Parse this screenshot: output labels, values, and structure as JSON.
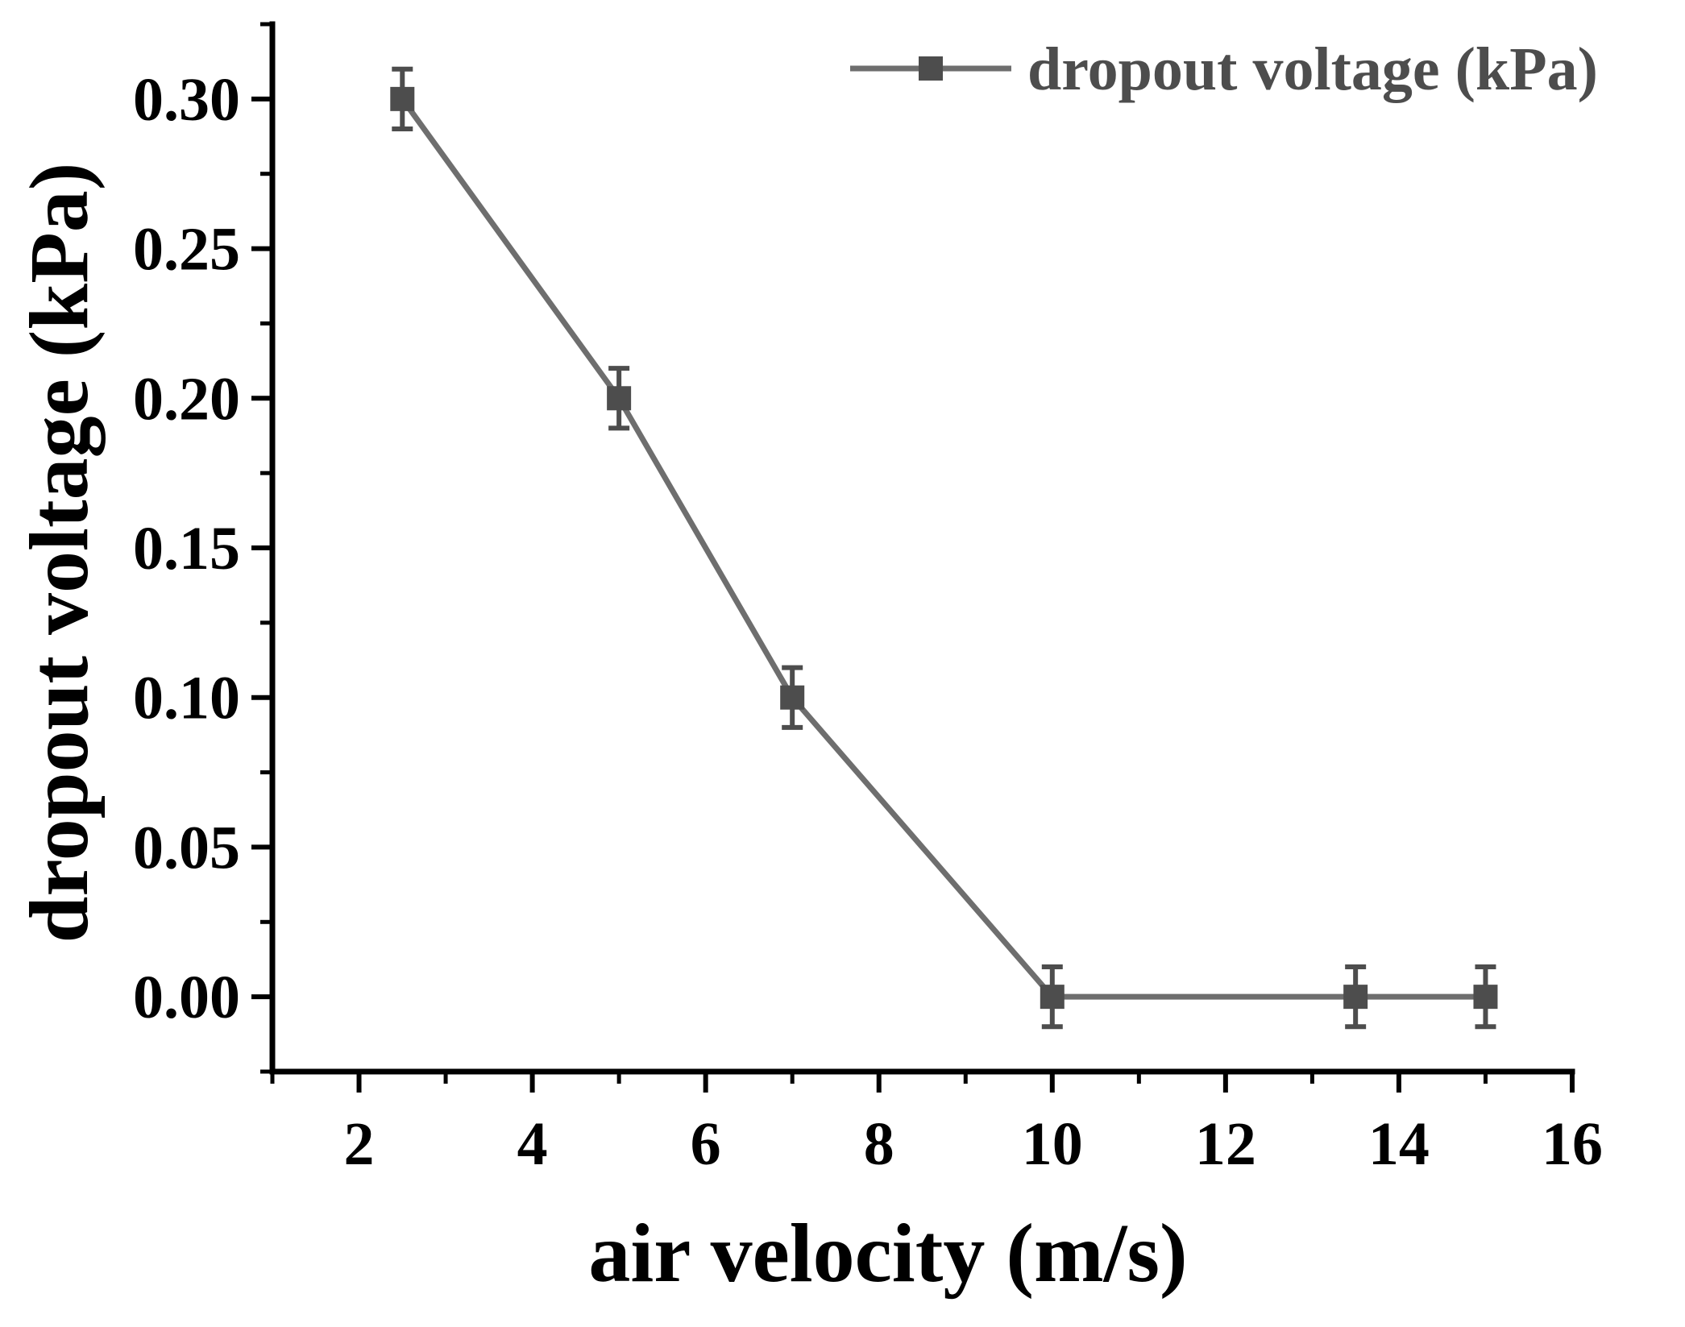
{
  "chart_data": {
    "type": "line",
    "xlabel": "air velocity (m/s)",
    "ylabel": "dropout voltage (kPa)",
    "xlim": [
      1,
      16
    ],
    "ylim": [
      -0.025,
      0.325
    ],
    "x_ticks": [
      2,
      4,
      6,
      8,
      10,
      12,
      14,
      16
    ],
    "x_tick_labels": [
      "2",
      "4",
      "6",
      "8",
      "10",
      "12",
      "14",
      "16"
    ],
    "y_ticks": [
      0.0,
      0.05,
      0.1,
      0.15,
      0.2,
      0.25,
      0.3
    ],
    "y_tick_labels": [
      "0.00",
      "0.05",
      "0.10",
      "0.15",
      "0.20",
      "0.25",
      "0.30"
    ],
    "grid": false,
    "legend_position": "top-right",
    "series": [
      {
        "name": "dropout voltage (kPa)",
        "color": "#6e6e6e",
        "marker_color": "#4d4d4d",
        "marker": "square",
        "x": [
          2.5,
          5,
          7,
          10,
          13.5,
          15
        ],
        "y": [
          0.3,
          0.2,
          0.1,
          0.0,
          0.0,
          0.0
        ],
        "error": [
          0.01,
          0.01,
          0.01,
          0.01,
          0.01,
          0.01
        ]
      }
    ]
  }
}
